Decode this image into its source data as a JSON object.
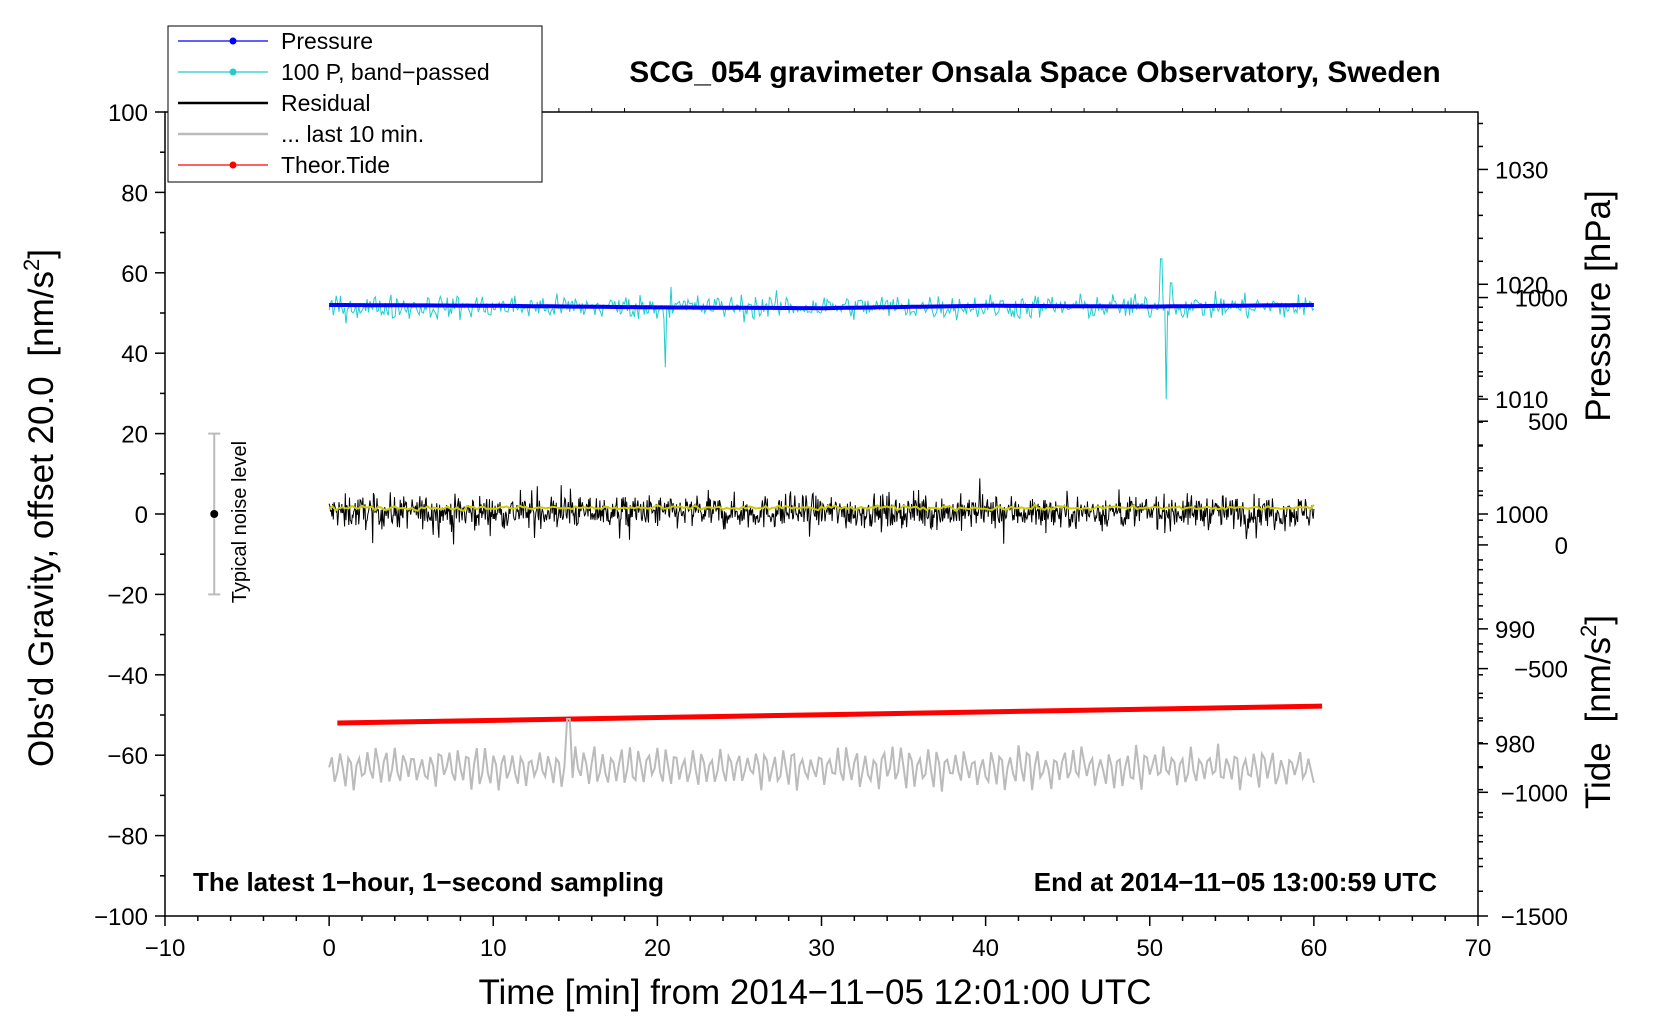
{
  "chart_data": {
    "type": "line",
    "title": "SCG_054 gravimeter Onsala Space Observatory, Sweden",
    "xlabel": "Time [min] from 2014−11−05 12:01:00 UTC",
    "ylabel_main": "Obs'd Gravity, offset 20.0",
    "ylabel_main_unit": "[nm/s",
    "ylabel_main_unit_sup": "2",
    "ylabel_main_unit_end": "]",
    "ylabel_pressure": "Pressure [hPa]",
    "ylabel_tide": "Tide",
    "ylabel_tide_unit": "[nm/s",
    "ylabel_tide_unit_sup": "2",
    "ylabel_tide_unit_end": "]",
    "xlim": [
      -10,
      70
    ],
    "ylim": [
      -100,
      100
    ],
    "x_ticks": [
      -10,
      0,
      10,
      20,
      30,
      40,
      50,
      60,
      70
    ],
    "x_tick_labels": [
      "−10",
      "0",
      "10",
      "20",
      "30",
      "40",
      "50",
      "60",
      "70"
    ],
    "y_ticks": [
      100,
      80,
      60,
      40,
      20,
      0,
      -20,
      -40,
      -60,
      -80,
      -100
    ],
    "y_tick_labels": [
      "100",
      "80",
      "60",
      "40",
      "20",
      "0",
      "−20",
      "−40",
      "−60",
      "−80",
      "−100"
    ],
    "pressure_axis": {
      "ticks": [
        1030,
        1020,
        1010,
        1000,
        990,
        980
      ],
      "tick_labels": [
        "1030",
        "1020",
        "1010",
        "1000",
        "990",
        "980"
      ],
      "ylim": [
        965,
        1035
      ]
    },
    "tide_axis": {
      "ticks": [
        1000,
        500,
        0,
        -500,
        -1000,
        -1500
      ],
      "tick_labels": [
        "1000",
        "500",
        "0",
        "−500",
        "−1000",
        "−1500"
      ],
      "ylim": [
        -1500,
        1750
      ]
    },
    "note_left": "The latest 1−hour, 1−second sampling",
    "note_right": "End at 2014−11−05 13:00:59 UTC",
    "noise_bar": {
      "x": -7,
      "center": 0,
      "low": -20,
      "high": 20,
      "label": "Typical noise level"
    },
    "legend": {
      "position": "top-left",
      "entries": [
        {
          "label": "Pressure",
          "color": "#0000ff",
          "marker": "dot"
        },
        {
          "label": "100 P, band−passed",
          "color": "#22cccc",
          "marker": "dot"
        },
        {
          "label": "Residual",
          "color": "#000000",
          "marker": "line"
        },
        {
          "label": "... last 10 min.",
          "color": "#bbbbbb",
          "marker": "line"
        },
        {
          "label": "Theor.Tide",
          "color": "#ff0000",
          "marker": "dot"
        }
      ]
    },
    "series": [
      {
        "name": "Pressure",
        "color": "#0000ff",
        "x_range": [
          0,
          60
        ],
        "anchor_x": [
          0,
          10,
          20,
          30,
          40,
          50,
          60
        ],
        "anchor_y": [
          52.0,
          51.8,
          51.4,
          51.2,
          51.8,
          51.6,
          52.0
        ]
      },
      {
        "name": "100 P, band-passed",
        "color": "#22cccc",
        "x_range": [
          0,
          60
        ],
        "center": 51.5,
        "amplitude": 3.5,
        "spikes": [
          [
            20.5,
            -15
          ],
          [
            20.8,
            5
          ],
          [
            50.7,
            12
          ],
          [
            51.0,
            -23
          ],
          [
            51.3,
            6
          ]
        ]
      },
      {
        "name": "Residual",
        "color": "#000000",
        "x_range": [
          0,
          60
        ],
        "center": 0.5,
        "amplitude": 6
      },
      {
        "name": "Residual smoothed",
        "color": "#cccc00",
        "x_range": [
          0,
          60
        ],
        "center": 1.5,
        "amplitude": 1
      },
      {
        "name": "Theor.Tide",
        "color": "#ff0000",
        "x_range": [
          0.5,
          60.5
        ],
        "values_main_axis": [
          -52.0,
          -47.8
        ]
      },
      {
        "name": "... last 10 min.",
        "color": "#bbbbbb",
        "x_range": [
          0,
          60
        ],
        "center": -63,
        "amplitude": 5
      }
    ]
  }
}
